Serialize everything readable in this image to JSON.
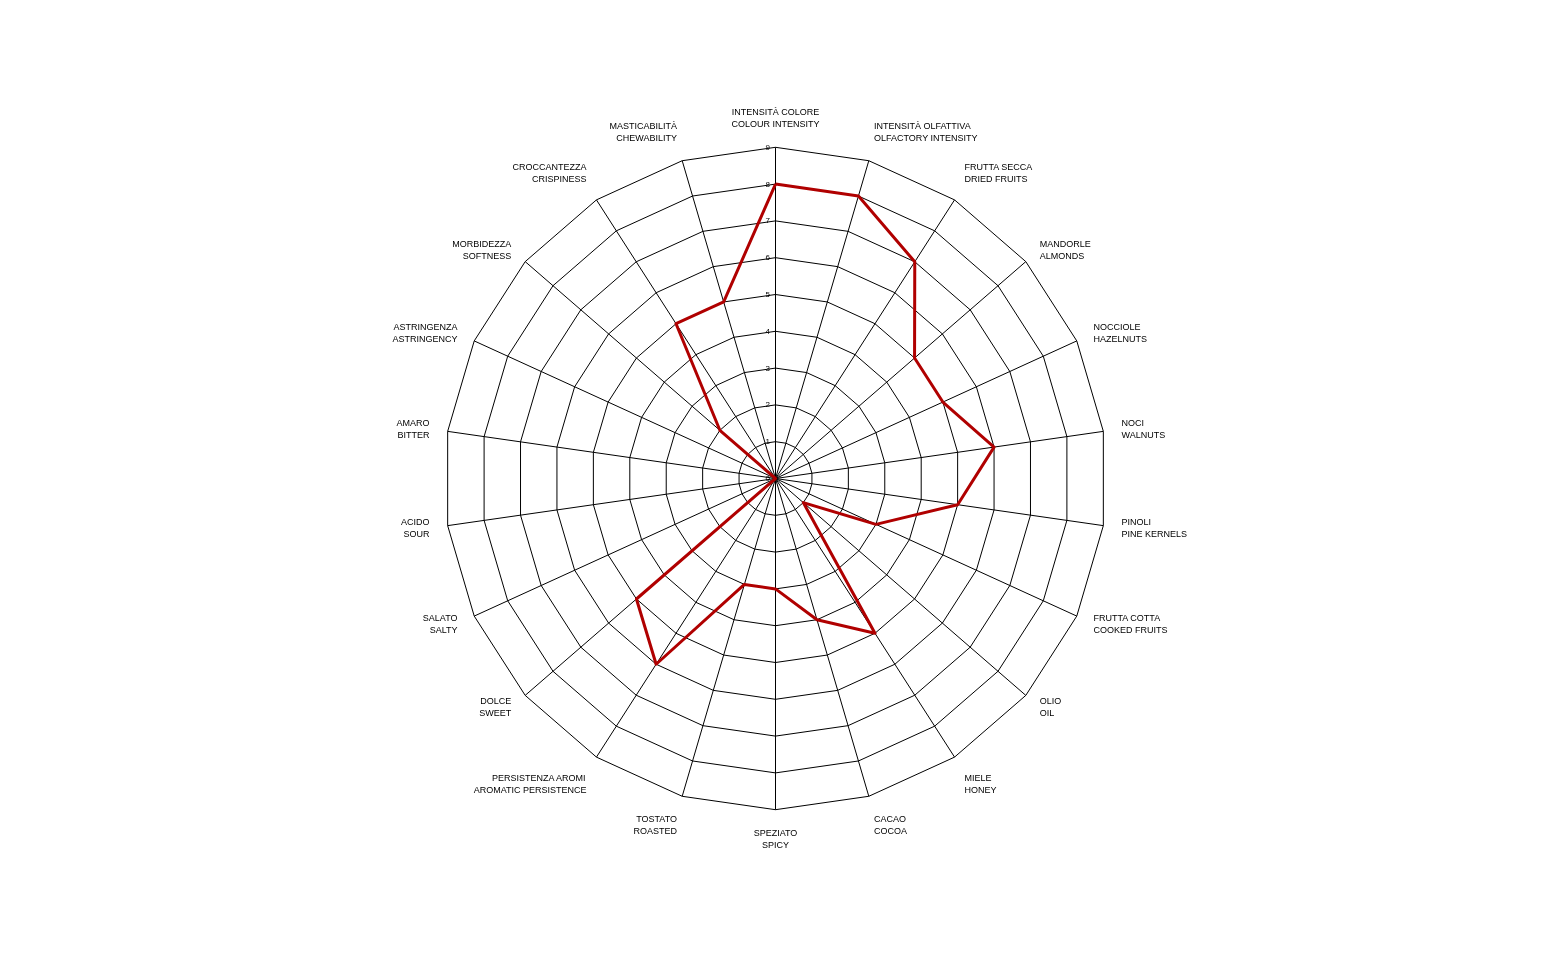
{
  "chart_data": {
    "type": "radar",
    "categories": [
      "INTENSITÀ COLORE\nCOLOUR INTENSITY",
      "INTENSITÀ OLFATTIVA\nOLFACTORY INTENSITY",
      "FRUTTA SECCA\nDRIED FRUITS",
      "MANDORLE\nALMONDS",
      "NOCCIOLE\nHAZELNUTS",
      "NOCI\nWALNUTS",
      "PINOLI\nPINE KERNELS",
      "FRUTTA COTTA\nCOOKED FRUITS",
      "OLIO\nOIL",
      "MIELE\nHONEY",
      "CACAO\nCOCOA",
      "SPEZIATO\nSPICY",
      "TOSTATO\nROASTED",
      "PERSISTENZA AROMI\nAROMATIC PERSISTENCE",
      "DOLCE\nSWEET",
      "SALATO\nSALTY",
      "ACIDO\nSOUR",
      "AMARO\nBITTER",
      "ASTRINGENZA\nASTRINGENCY",
      "MORBIDEZZA\nSOFTNESS",
      "CROCCANTEZZA\nCRISPINESS",
      "MASTICABILITÀ\nCHEWABILITY"
    ],
    "series": [
      {
        "color": "#b00000",
        "values": [
          8,
          8,
          7,
          5,
          5,
          6,
          5,
          3,
          1,
          5,
          4,
          3,
          3,
          6,
          5,
          0,
          0,
          0,
          0,
          2,
          5,
          5
        ]
      }
    ],
    "ylim": [
      0,
      9
    ],
    "yticks": [
      0,
      1,
      2,
      3,
      4,
      5,
      6,
      7,
      8,
      9
    ],
    "grid": true,
    "marker": "none",
    "line_style": "solid"
  }
}
